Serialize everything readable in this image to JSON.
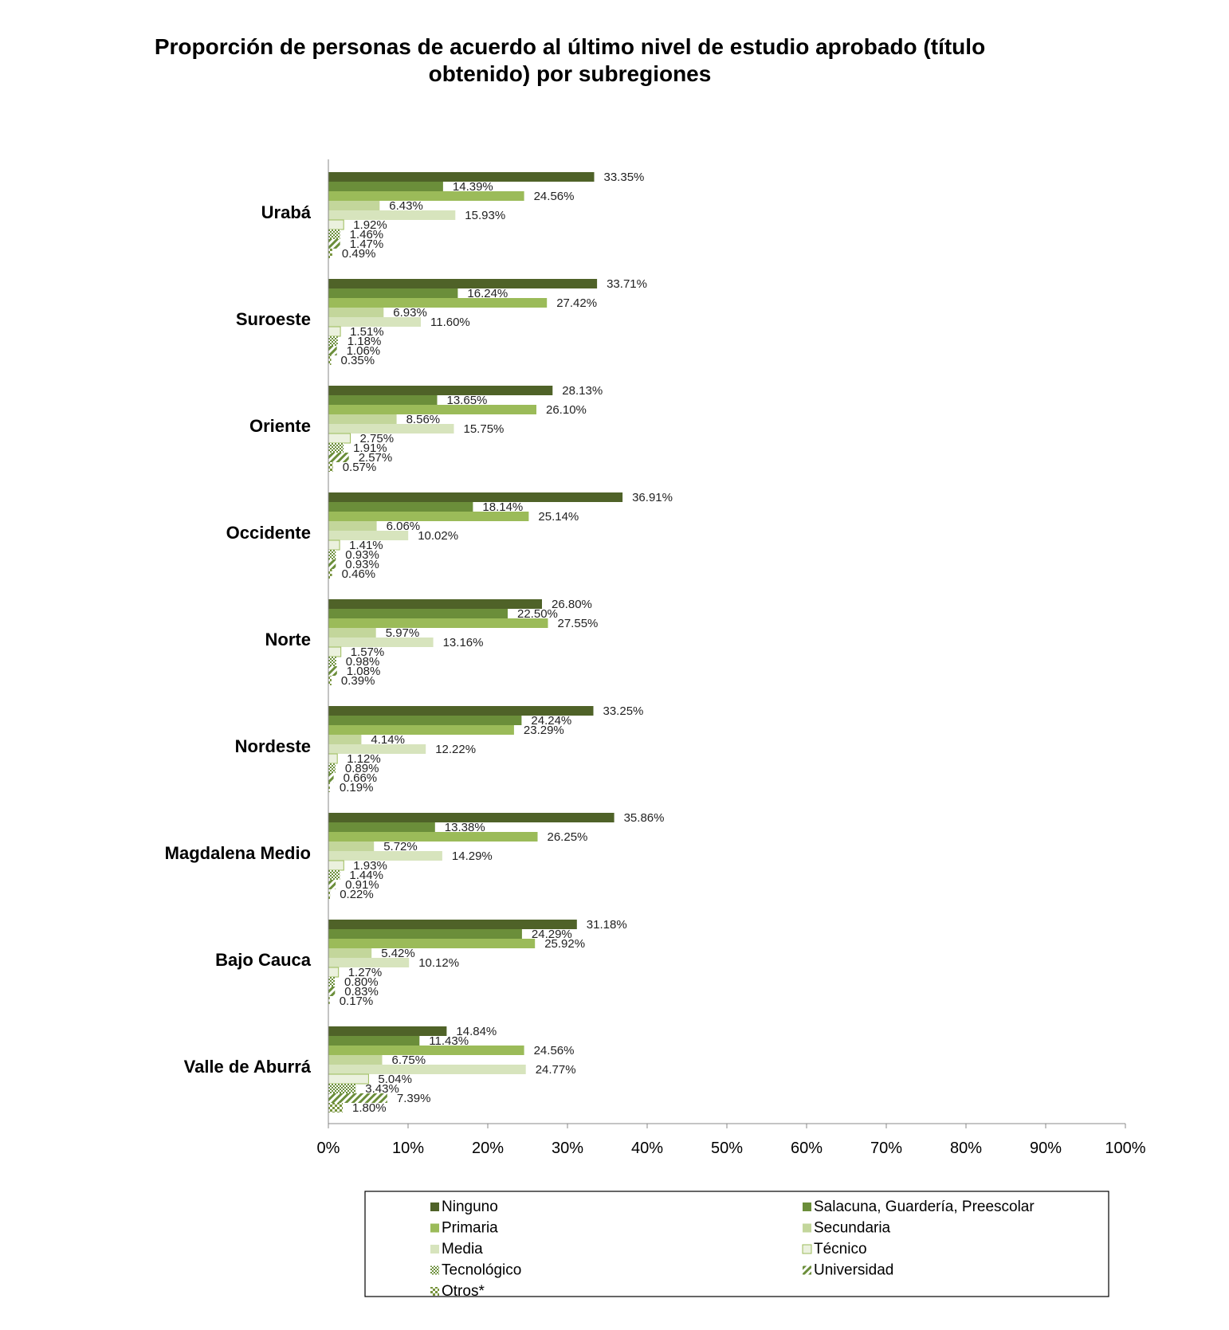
{
  "chart_data": {
    "type": "bar",
    "orientation": "horizontal",
    "title": "Proporción de personas de acuerdo al último nivel de estudio aprobado (título obtenido) por subregiones",
    "categories": [
      "Urabá",
      "Suroeste",
      "Oriente",
      "Occidente",
      "Norte",
      "Nordeste",
      "Magdalena Medio",
      "Bajo Cauca",
      "Valle de Aburrá"
    ],
    "xlim": [
      0,
      100
    ],
    "ticks": [
      "0%",
      "10%",
      "20%",
      "30%",
      "40%",
      "50%",
      "60%",
      "70%",
      "80%",
      "90%",
      "100%"
    ],
    "grid": false,
    "legend_position": "bottom",
    "series": [
      {
        "name": "Ninguno",
        "color": "#4f6228",
        "pattern": "solid",
        "values": [
          33.35,
          33.71,
          28.13,
          36.91,
          26.8,
          33.25,
          35.86,
          31.18,
          14.84
        ],
        "labels": [
          "33.35%",
          "33.71%",
          "28.13%",
          "36.91%",
          "26.80%",
          "33.25%",
          "35.86%",
          "31.18%",
          "14.84%"
        ]
      },
      {
        "name": "Salacuna, Guardería, Preescolar",
        "color": "#6b8e3a",
        "pattern": "solid",
        "values": [
          14.39,
          16.24,
          13.65,
          18.14,
          22.5,
          24.24,
          13.38,
          24.29,
          11.43
        ],
        "labels": [
          "14.39%",
          "16.24%",
          "13.65%",
          "18.14%",
          "22.50%",
          "24.24%",
          "13.38%",
          "24.29%",
          "11.43%"
        ]
      },
      {
        "name": "Primaria",
        "color": "#9bbb59",
        "pattern": "solid",
        "values": [
          24.56,
          27.42,
          26.1,
          25.14,
          27.55,
          23.29,
          26.25,
          25.92,
          24.56
        ],
        "labels": [
          "24.56%",
          "27.42%",
          "26.10%",
          "25.14%",
          "27.55%",
          "23.29%",
          "26.25%",
          "25.92%",
          "24.56%"
        ]
      },
      {
        "name": "Secundaria",
        "color": "#c3d69b",
        "pattern": "solid",
        "values": [
          6.43,
          6.93,
          8.56,
          6.06,
          5.97,
          4.14,
          5.72,
          5.42,
          6.75
        ],
        "labels": [
          "6.43%",
          "6.93%",
          "8.56%",
          "6.06%",
          "5.97%",
          "4.14%",
          "5.72%",
          "5.42%",
          "6.75%"
        ]
      },
      {
        "name": "Media",
        "color": "#d7e4bd",
        "pattern": "solid",
        "values": [
          15.93,
          11.6,
          15.75,
          10.02,
          13.16,
          12.22,
          14.29,
          10.12,
          24.77
        ],
        "labels": [
          "15.93%",
          "11.60%",
          "15.75%",
          "10.02%",
          "13.16%",
          "12.22%",
          "14.29%",
          "10.12%",
          "24.77%"
        ]
      },
      {
        "name": "Técnico",
        "color": "#ebf1de",
        "pattern": "outline",
        "values": [
          1.92,
          1.51,
          2.75,
          1.41,
          1.57,
          1.12,
          1.93,
          1.27,
          5.04
        ],
        "labels": [
          "1.92%",
          "1.51%",
          "2.75%",
          "1.41%",
          "1.57%",
          "1.12%",
          "1.93%",
          "1.27%",
          "5.04%"
        ]
      },
      {
        "name": "Tecnológico",
        "color": "#6b8e3a",
        "pattern": "dots",
        "values": [
          1.46,
          1.18,
          1.91,
          0.93,
          0.98,
          0.89,
          1.44,
          0.8,
          3.43
        ],
        "labels": [
          "1.46%",
          "1.18%",
          "1.91%",
          "0.93%",
          "0.98%",
          "0.89%",
          "1.44%",
          "0.80%",
          "3.43%"
        ]
      },
      {
        "name": "Universidad",
        "color": "#6b8e3a",
        "pattern": "diagonal",
        "values": [
          1.47,
          1.06,
          2.57,
          0.93,
          1.08,
          0.66,
          0.91,
          0.83,
          7.39
        ],
        "labels": [
          "1.47%",
          "1.06%",
          "2.57%",
          "0.93%",
          "1.08%",
          "0.66%",
          "0.91%",
          "0.83%",
          "7.39%"
        ]
      },
      {
        "name": "Otros*",
        "color": "#77933c",
        "pattern": "checker",
        "values": [
          0.49,
          0.35,
          0.57,
          0.46,
          0.39,
          0.19,
          0.22,
          0.17,
          1.8
        ],
        "labels": [
          "0.49%",
          "0.35%",
          "0.57%",
          "0.46%",
          "0.39%",
          "0.19%",
          "0.22%",
          "0.17%",
          "1.80%"
        ]
      }
    ]
  }
}
